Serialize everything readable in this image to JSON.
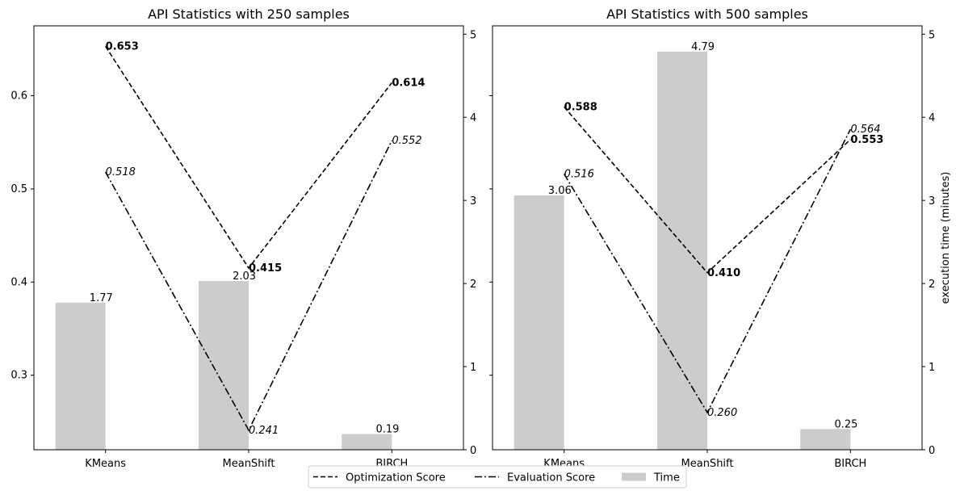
{
  "chart_data": [
    {
      "type": "bar",
      "title": "API Statistics with 250 samples",
      "categories": [
        "KMeans",
        "MeanShift",
        "BIRCH"
      ],
      "xlabel": "",
      "ylabel": "",
      "ylim": [
        0.22,
        0.675
      ],
      "yticks": [
        0.3,
        0.4,
        0.5,
        0.6
      ],
      "ytick_labels": [
        "0.3",
        "0.4",
        "0.5",
        "0.6"
      ],
      "y2label": "",
      "y2lim": [
        0,
        5.1
      ],
      "y2ticks": [
        0,
        1,
        2,
        3,
        4,
        5
      ],
      "series": [
        {
          "name": "Optimization Score",
          "kind": "line",
          "style": "dashed",
          "axis": "left",
          "values": [
            0.653,
            0.415,
            0.614
          ],
          "labels": [
            "0.653",
            "0.415",
            "0.614"
          ],
          "label_style": "bold"
        },
        {
          "name": "Evaluation Score",
          "kind": "line",
          "style": "dashdot",
          "axis": "left",
          "values": [
            0.518,
            0.241,
            0.552
          ],
          "labels": [
            "0.518",
            "0.241",
            "0.552"
          ],
          "label_style": "italic"
        },
        {
          "name": "Time",
          "kind": "bar",
          "axis": "right",
          "values": [
            1.77,
            2.03,
            0.19
          ],
          "labels": [
            "1.77",
            "2.03",
            "0.19"
          ],
          "label_style": "normal"
        }
      ]
    },
    {
      "type": "bar",
      "title": "API Statistics with 500 samples",
      "categories": [
        "KMeans",
        "MeanShift",
        "BIRCH"
      ],
      "xlabel": "",
      "ylabel": "",
      "ylim": [
        0.22,
        0.675
      ],
      "yticks": [],
      "ytick_labels": [],
      "y2label": "execution time (minutes)",
      "y2lim": [
        0,
        5.1
      ],
      "y2ticks": [
        0,
        1,
        2,
        3,
        4,
        5
      ],
      "series": [
        {
          "name": "Optimization Score",
          "kind": "line",
          "style": "dashed",
          "axis": "left",
          "values": [
            0.588,
            0.41,
            0.553
          ],
          "labels": [
            "0.588",
            "0.410",
            "0.553"
          ],
          "label_style": "bold"
        },
        {
          "name": "Evaluation Score",
          "kind": "line",
          "style": "dashdot",
          "axis": "left",
          "values": [
            0.516,
            0.26,
            0.564
          ],
          "labels": [
            "0.516",
            "0.260",
            "0.564"
          ],
          "label_style": "italic"
        },
        {
          "name": "Time",
          "kind": "bar",
          "axis": "right",
          "values": [
            3.06,
            4.79,
            0.25
          ],
          "labels": [
            "3.06",
            "4.79",
            "0.25"
          ],
          "label_style": "normal"
        }
      ]
    }
  ],
  "legend": {
    "position": "bottom-center",
    "items": [
      {
        "label": "Optimization Score",
        "style": "dashed"
      },
      {
        "label": "Evaluation Score",
        "style": "dashdot"
      },
      {
        "label": "Time",
        "style": "bar"
      }
    ]
  },
  "colors": {
    "bar": "#cccccc",
    "line": "#000000",
    "axes": "#000000"
  }
}
